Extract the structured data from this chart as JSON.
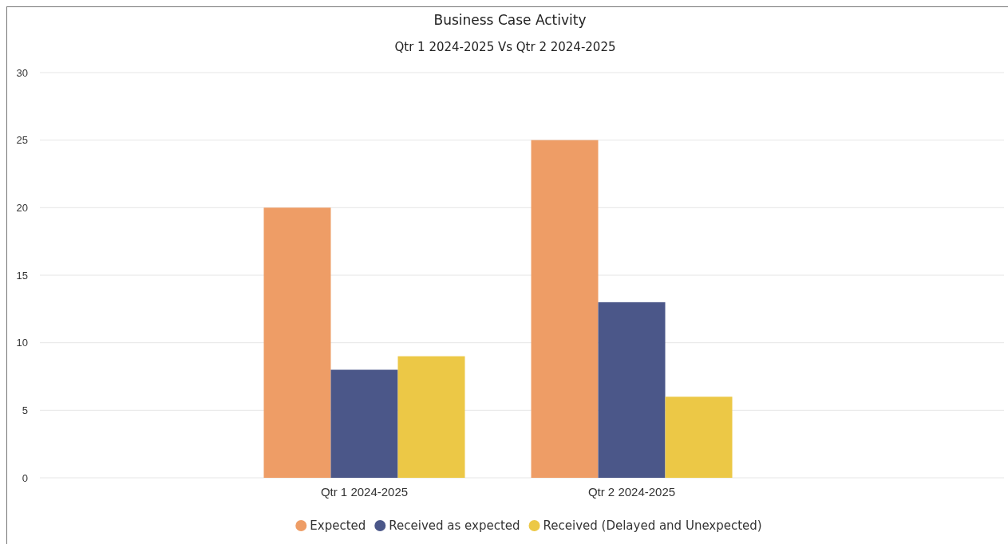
{
  "chart_data": {
    "type": "bar",
    "title": "Business Case Activity",
    "subtitle": "Qtr 1 2024-2025 Vs Qtr 2 2024-2025",
    "categories": [
      "Qtr 1 2024-2025",
      "Qtr 2 2024-2025"
    ],
    "series": [
      {
        "name": "Expected",
        "color": "#ee9d66",
        "values": [
          20,
          25
        ]
      },
      {
        "name": "Received as expected",
        "color": "#4b5789",
        "values": [
          8,
          13
        ]
      },
      {
        "name": "Received (Delayed and Unexpected)",
        "color": "#ecc846",
        "values": [
          9,
          6
        ]
      }
    ],
    "ylim": [
      0,
      30
    ],
    "yticks": [
      0,
      5,
      10,
      15,
      20,
      25,
      30
    ],
    "grid": "y",
    "legend": "bottom"
  }
}
